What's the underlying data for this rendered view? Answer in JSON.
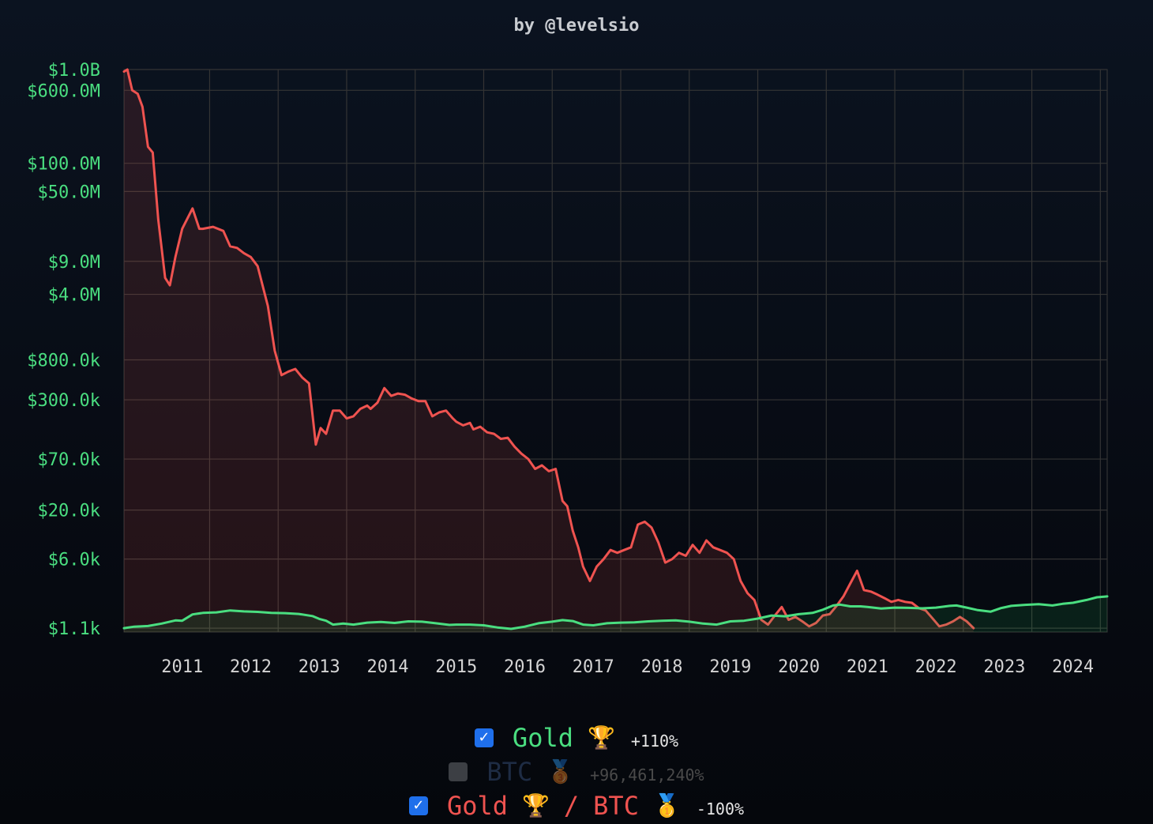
{
  "chart_data": {
    "type": "area",
    "subtitle": "by @levelsio",
    "y_scale": "log",
    "ylim": [
      1000,
      1000000000
    ],
    "xlim": [
      2010.15,
      2024.5
    ],
    "y_ticks": [
      {
        "value": 1000000000,
        "label": "$1.0B"
      },
      {
        "value": 600000000,
        "label": "$600.0M"
      },
      {
        "value": 100000000,
        "label": "$100.0M"
      },
      {
        "value": 50000000,
        "label": "$50.0M"
      },
      {
        "value": 9000000,
        "label": "$9.0M"
      },
      {
        "value": 4000000,
        "label": "$4.0M"
      },
      {
        "value": 800000,
        "label": "$800.0k"
      },
      {
        "value": 300000,
        "label": "$300.0k"
      },
      {
        "value": 70000,
        "label": "$70.0k"
      },
      {
        "value": 20000,
        "label": "$20.0k"
      },
      {
        "value": 6000,
        "label": "$6.0k"
      },
      {
        "value": 1100,
        "label": "$1.1k"
      }
    ],
    "x_ticks": [
      {
        "value": 2011,
        "label": "2011"
      },
      {
        "value": 2012,
        "label": "2012"
      },
      {
        "value": 2013,
        "label": "2013"
      },
      {
        "value": 2014,
        "label": "2014"
      },
      {
        "value": 2015,
        "label": "2015"
      },
      {
        "value": 2016,
        "label": "2016"
      },
      {
        "value": 2017,
        "label": "2017"
      },
      {
        "value": 2018,
        "label": "2018"
      },
      {
        "value": 2019,
        "label": "2019"
      },
      {
        "value": 2020,
        "label": "2020"
      },
      {
        "value": 2021,
        "label": "2021"
      },
      {
        "value": 2022,
        "label": "2022"
      },
      {
        "value": 2023,
        "label": "2023"
      },
      {
        "value": 2024,
        "label": "2024"
      }
    ],
    "grid": true,
    "series": [
      {
        "name": "Gold / BTC",
        "color": "#ef5350",
        "fill": "#ef5350",
        "points": [
          [
            2010.15,
            950000000
          ],
          [
            2010.2,
            1000000000
          ],
          [
            2010.27,
            600000000
          ],
          [
            2010.35,
            550000000
          ],
          [
            2010.42,
            400000000
          ],
          [
            2010.5,
            150000000
          ],
          [
            2010.57,
            130000000
          ],
          [
            2010.65,
            25000000
          ],
          [
            2010.75,
            6000000
          ],
          [
            2010.82,
            5000000
          ],
          [
            2010.9,
            10000000
          ],
          [
            2011.0,
            20000000
          ],
          [
            2011.15,
            33000000
          ],
          [
            2011.25,
            20000000
          ],
          [
            2011.3,
            20000000
          ],
          [
            2011.45,
            21000000
          ],
          [
            2011.6,
            19000000
          ],
          [
            2011.7,
            13000000
          ],
          [
            2011.8,
            12500000
          ],
          [
            2011.9,
            11000000
          ],
          [
            2012.0,
            10000000
          ],
          [
            2012.1,
            8000000
          ],
          [
            2012.25,
            3000000
          ],
          [
            2012.35,
            1000000
          ],
          [
            2012.45,
            550000
          ],
          [
            2012.55,
            600000
          ],
          [
            2012.65,
            640000
          ],
          [
            2012.75,
            520000
          ],
          [
            2012.85,
            450000
          ],
          [
            2012.95,
            100000
          ],
          [
            2013.02,
            150000
          ],
          [
            2013.1,
            130000
          ],
          [
            2013.2,
            230000
          ],
          [
            2013.3,
            230000
          ],
          [
            2013.4,
            190000
          ],
          [
            2013.5,
            200000
          ],
          [
            2013.6,
            240000
          ],
          [
            2013.7,
            260000
          ],
          [
            2013.75,
            240000
          ],
          [
            2013.85,
            280000
          ],
          [
            2013.95,
            400000
          ],
          [
            2014.05,
            330000
          ],
          [
            2014.15,
            350000
          ],
          [
            2014.25,
            340000
          ],
          [
            2014.35,
            310000
          ],
          [
            2014.45,
            290000
          ],
          [
            2014.55,
            290000
          ],
          [
            2014.65,
            200000
          ],
          [
            2014.75,
            220000
          ],
          [
            2014.85,
            230000
          ],
          [
            2014.95,
            190000
          ],
          [
            2015.0,
            175000
          ],
          [
            2015.1,
            160000
          ],
          [
            2015.2,
            170000
          ],
          [
            2015.25,
            145000
          ],
          [
            2015.35,
            155000
          ],
          [
            2015.45,
            135000
          ],
          [
            2015.55,
            130000
          ],
          [
            2015.65,
            115000
          ],
          [
            2015.75,
            118000
          ],
          [
            2015.85,
            95000
          ],
          [
            2015.95,
            80000
          ],
          [
            2016.05,
            70000
          ],
          [
            2016.15,
            55000
          ],
          [
            2016.25,
            60000
          ],
          [
            2016.35,
            52000
          ],
          [
            2016.45,
            55000
          ],
          [
            2016.55,
            25000
          ],
          [
            2016.62,
            22000
          ],
          [
            2016.7,
            12000
          ],
          [
            2016.78,
            8000
          ],
          [
            2016.85,
            5000
          ],
          [
            2016.95,
            3500
          ],
          [
            2017.05,
            5000
          ],
          [
            2017.15,
            6000
          ],
          [
            2017.25,
            7500
          ],
          [
            2017.35,
            7000
          ],
          [
            2017.45,
            7500
          ],
          [
            2017.55,
            8000
          ],
          [
            2017.65,
            14000
          ],
          [
            2017.75,
            15000
          ],
          [
            2017.85,
            13000
          ],
          [
            2017.95,
            9000
          ],
          [
            2018.05,
            5500
          ],
          [
            2018.15,
            6000
          ],
          [
            2018.25,
            7000
          ],
          [
            2018.35,
            6500
          ],
          [
            2018.45,
            8500
          ],
          [
            2018.55,
            7000
          ],
          [
            2018.65,
            9500
          ],
          [
            2018.75,
            8000
          ],
          [
            2018.85,
            7500
          ],
          [
            2018.95,
            7000
          ],
          [
            2019.05,
            6000
          ],
          [
            2019.15,
            3500
          ],
          [
            2019.25,
            2600
          ],
          [
            2019.35,
            2200
          ],
          [
            2019.45,
            1350
          ],
          [
            2019.55,
            1200
          ],
          [
            2019.65,
            1500
          ],
          [
            2019.75,
            1850
          ],
          [
            2019.85,
            1350
          ],
          [
            2019.95,
            1450
          ],
          [
            2020.05,
            1300
          ],
          [
            2020.15,
            1150
          ],
          [
            2020.25,
            1250
          ],
          [
            2020.35,
            1500
          ],
          [
            2020.45,
            1550
          ],
          [
            2020.55,
            1900
          ],
          [
            2020.65,
            2400
          ],
          [
            2020.75,
            3300
          ],
          [
            2020.85,
            4500
          ],
          [
            2020.95,
            2800
          ],
          [
            2021.05,
            2700
          ],
          [
            2021.15,
            2500
          ],
          [
            2021.25,
            2300
          ],
          [
            2021.35,
            2100
          ],
          [
            2021.45,
            2200
          ],
          [
            2021.55,
            2100
          ],
          [
            2021.65,
            2050
          ],
          [
            2021.75,
            1800
          ],
          [
            2021.85,
            1700
          ],
          [
            2021.95,
            1400
          ],
          [
            2022.05,
            1150
          ],
          [
            2022.15,
            1200
          ],
          [
            2022.25,
            1300
          ],
          [
            2022.35,
            1450
          ],
          [
            2022.45,
            1300
          ],
          [
            2022.55,
            1100
          ]
        ]
      },
      {
        "name": "Gold",
        "color": "#4ade80",
        "fill": "#22c55e",
        "points": [
          [
            2010.15,
            1100
          ],
          [
            2010.3,
            1140
          ],
          [
            2010.5,
            1160
          ],
          [
            2010.7,
            1230
          ],
          [
            2010.9,
            1330
          ],
          [
            2011.0,
            1320
          ],
          [
            2011.15,
            1540
          ],
          [
            2011.3,
            1600
          ],
          [
            2011.5,
            1620
          ],
          [
            2011.7,
            1700
          ],
          [
            2011.9,
            1660
          ],
          [
            2012.1,
            1640
          ],
          [
            2012.3,
            1600
          ],
          [
            2012.5,
            1590
          ],
          [
            2012.7,
            1560
          ],
          [
            2012.9,
            1480
          ],
          [
            2013.0,
            1380
          ],
          [
            2013.1,
            1320
          ],
          [
            2013.2,
            1200
          ],
          [
            2013.35,
            1230
          ],
          [
            2013.5,
            1200
          ],
          [
            2013.7,
            1260
          ],
          [
            2013.9,
            1280
          ],
          [
            2014.1,
            1250
          ],
          [
            2014.3,
            1300
          ],
          [
            2014.5,
            1290
          ],
          [
            2014.7,
            1240
          ],
          [
            2014.9,
            1190
          ],
          [
            2015.0,
            1200
          ],
          [
            2015.2,
            1200
          ],
          [
            2015.4,
            1180
          ],
          [
            2015.6,
            1120
          ],
          [
            2015.8,
            1080
          ],
          [
            2016.0,
            1140
          ],
          [
            2016.2,
            1240
          ],
          [
            2016.4,
            1290
          ],
          [
            2016.55,
            1340
          ],
          [
            2016.7,
            1310
          ],
          [
            2016.85,
            1200
          ],
          [
            2017.0,
            1180
          ],
          [
            2017.2,
            1240
          ],
          [
            2017.4,
            1260
          ],
          [
            2017.6,
            1270
          ],
          [
            2017.8,
            1300
          ],
          [
            2018.0,
            1320
          ],
          [
            2018.2,
            1330
          ],
          [
            2018.4,
            1290
          ],
          [
            2018.6,
            1230
          ],
          [
            2018.8,
            1200
          ],
          [
            2019.0,
            1300
          ],
          [
            2019.2,
            1320
          ],
          [
            2019.4,
            1390
          ],
          [
            2019.6,
            1500
          ],
          [
            2019.8,
            1470
          ],
          [
            2020.0,
            1550
          ],
          [
            2020.2,
            1600
          ],
          [
            2020.35,
            1730
          ],
          [
            2020.5,
            1920
          ],
          [
            2020.6,
            1960
          ],
          [
            2020.75,
            1880
          ],
          [
            2020.9,
            1880
          ],
          [
            2021.0,
            1850
          ],
          [
            2021.2,
            1780
          ],
          [
            2021.4,
            1820
          ],
          [
            2021.6,
            1810
          ],
          [
            2021.8,
            1790
          ],
          [
            2022.0,
            1820
          ],
          [
            2022.2,
            1900
          ],
          [
            2022.3,
            1920
          ],
          [
            2022.45,
            1820
          ],
          [
            2022.6,
            1720
          ],
          [
            2022.8,
            1650
          ],
          [
            2022.95,
            1800
          ],
          [
            2023.1,
            1900
          ],
          [
            2023.3,
            1950
          ],
          [
            2023.5,
            1980
          ],
          [
            2023.7,
            1920
          ],
          [
            2023.85,
            2000
          ],
          [
            2024.0,
            2050
          ],
          [
            2024.2,
            2200
          ],
          [
            2024.35,
            2350
          ],
          [
            2024.5,
            2400
          ]
        ]
      }
    ]
  },
  "legend": [
    {
      "key": "gold",
      "checked": true,
      "label": "Gold",
      "medal": "🏆",
      "change": "+110%",
      "color": "#4ade80"
    },
    {
      "key": "btc",
      "checked": false,
      "label": "BTC",
      "medal": "🥉",
      "change": "+96,461,240%",
      "color": "#1e2c44"
    },
    {
      "key": "ratio",
      "checked": true,
      "label_left": "Gold",
      "medal_left": "🏆",
      "label_sep": "/",
      "label_right": "BTC",
      "medal_right": "🥇",
      "change": "-100%",
      "color": "#ef5350"
    }
  ]
}
